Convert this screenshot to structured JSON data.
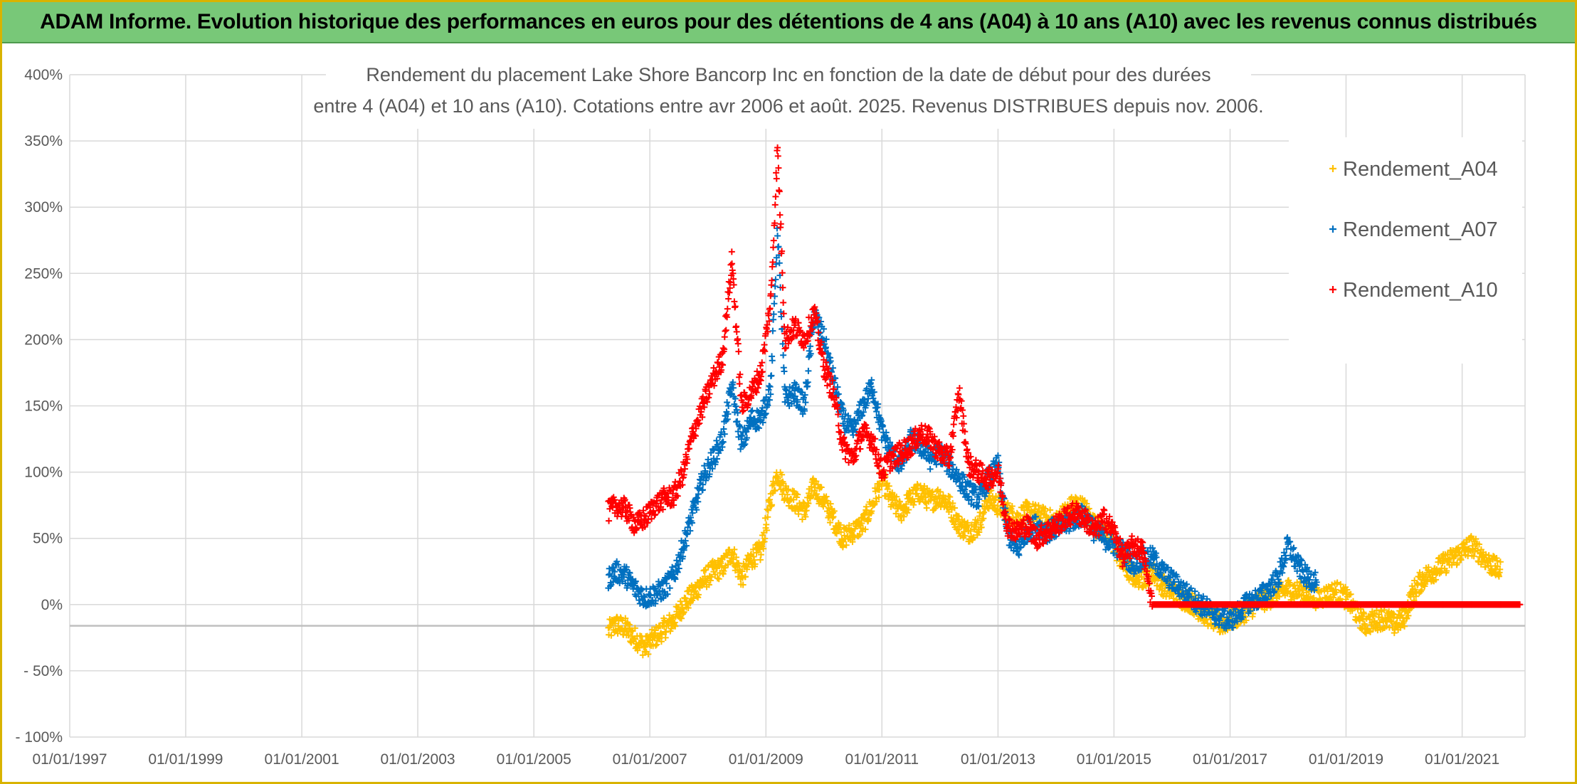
{
  "banner": {
    "title": "ADAM Informe. Evolution historique des performances en euros pour des détentions de 4 ans (A04) à 10 ans (A10) avec les revenus connus distribués"
  },
  "colors": {
    "banner_bg": "#78c878",
    "frame": "#d9b300",
    "grid": "#d9d9d9",
    "axis_line": "#bfbfbf",
    "text": "#595959",
    "A04": "#ffc000",
    "A07": "#0070c0",
    "A10": "#ff0000"
  },
  "chart_data": {
    "type": "scatter",
    "marker": "plus",
    "title_lines": [
      "Rendement du placement Lake Shore Bancorp Inc en fonction de la date de début pour des durées",
      "entre 4 (A04) et 10 ans (A10). Cotations entre avr 2006 et août. 2025. Revenus DISTRIBUES depuis nov. 2006."
    ],
    "xlabel": "",
    "ylabel": "",
    "x_type": "date",
    "xlim": [
      "1997-01-01",
      "2022-02-01"
    ],
    "x_tick_labels": [
      "01/01/1997",
      "01/01/1999",
      "01/01/2001",
      "01/01/2003",
      "01/01/2005",
      "01/01/2007",
      "01/01/2009",
      "01/01/2011",
      "01/01/2013",
      "01/01/2015",
      "01/01/2017",
      "01/01/2019",
      "01/01/2021"
    ],
    "x_tick_values": [
      "1997-01-01",
      "1999-01-01",
      "2001-01-01",
      "2003-01-01",
      "2005-01-01",
      "2007-01-01",
      "2009-01-01",
      "2011-01-01",
      "2013-01-01",
      "2015-01-01",
      "2017-01-01",
      "2019-01-01",
      "2021-01-01"
    ],
    "ylim": [
      -100,
      400
    ],
    "y_tick_labels": [
      "400%",
      "350%",
      "300%",
      "250%",
      "200%",
      "150%",
      "100%",
      "50%",
      "0%",
      "- 50%",
      "- 100%"
    ],
    "y_tick_values": [
      400,
      350,
      300,
      250,
      200,
      150,
      100,
      50,
      0,
      -50,
      -100
    ],
    "y_unit": "%",
    "grid": true,
    "horizontal_reference_line": -16,
    "legend_position": "top-right",
    "legend_entries": [
      "Rendement_A04",
      "Rendement_A07",
      "Rendement_A10"
    ],
    "series": [
      {
        "name": "Rendement_A04",
        "color": "#ffc000",
        "points": [
          [
            "2006-04-15",
            -20
          ],
          [
            "2006-06-01",
            -15
          ],
          [
            "2006-08-01",
            -18
          ],
          [
            "2006-10-01",
            -25
          ],
          [
            "2006-12-01",
            -32
          ],
          [
            "2007-02-01",
            -25
          ],
          [
            "2007-04-01",
            -18
          ],
          [
            "2007-06-01",
            -12
          ],
          [
            "2007-08-01",
            0
          ],
          [
            "2007-10-01",
            8
          ],
          [
            "2007-12-01",
            18
          ],
          [
            "2008-02-01",
            25
          ],
          [
            "2008-04-01",
            28
          ],
          [
            "2008-06-01",
            40
          ],
          [
            "2008-08-01",
            20
          ],
          [
            "2008-10-01",
            35
          ],
          [
            "2008-12-01",
            40
          ],
          [
            "2009-02-01",
            80
          ],
          [
            "2009-03-15",
            100
          ],
          [
            "2009-05-01",
            85
          ],
          [
            "2009-07-01",
            78
          ],
          [
            "2009-09-01",
            70
          ],
          [
            "2009-11-01",
            90
          ],
          [
            "2010-01-01",
            78
          ],
          [
            "2010-03-01",
            65
          ],
          [
            "2010-05-01",
            50
          ],
          [
            "2010-07-01",
            55
          ],
          [
            "2010-09-01",
            60
          ],
          [
            "2010-11-01",
            75
          ],
          [
            "2011-01-01",
            95
          ],
          [
            "2011-03-01",
            78
          ],
          [
            "2011-05-01",
            70
          ],
          [
            "2011-07-01",
            80
          ],
          [
            "2011-09-01",
            85
          ],
          [
            "2011-11-01",
            78
          ],
          [
            "2012-01-01",
            82
          ],
          [
            "2012-03-01",
            75
          ],
          [
            "2012-05-01",
            60
          ],
          [
            "2012-07-01",
            55
          ],
          [
            "2012-09-01",
            60
          ],
          [
            "2012-11-01",
            80
          ],
          [
            "2013-01-01",
            75
          ],
          [
            "2013-03-01",
            70
          ],
          [
            "2013-05-01",
            65
          ],
          [
            "2013-07-01",
            70
          ],
          [
            "2013-09-01",
            68
          ],
          [
            "2013-11-01",
            65
          ],
          [
            "2014-01-01",
            62
          ],
          [
            "2014-03-01",
            70
          ],
          [
            "2014-05-01",
            76
          ],
          [
            "2014-07-01",
            72
          ],
          [
            "2014-09-01",
            60
          ],
          [
            "2014-11-01",
            55
          ],
          [
            "2015-01-01",
            45
          ],
          [
            "2015-03-01",
            30
          ],
          [
            "2015-05-01",
            22
          ],
          [
            "2015-07-01",
            20
          ],
          [
            "2015-09-01",
            25
          ],
          [
            "2015-11-01",
            15
          ],
          [
            "2016-01-01",
            10
          ],
          [
            "2016-03-01",
            5
          ],
          [
            "2016-05-01",
            2
          ],
          [
            "2016-07-01",
            -5
          ],
          [
            "2016-09-01",
            -10
          ],
          [
            "2016-11-01",
            -15
          ],
          [
            "2017-01-01",
            -12
          ],
          [
            "2017-03-01",
            -8
          ],
          [
            "2017-05-01",
            -3
          ],
          [
            "2017-07-01",
            2
          ],
          [
            "2017-09-01",
            5
          ],
          [
            "2017-11-01",
            8
          ],
          [
            "2018-01-01",
            12
          ],
          [
            "2018-03-01",
            10
          ],
          [
            "2018-05-01",
            8
          ],
          [
            "2018-07-01",
            5
          ],
          [
            "2018-09-01",
            7
          ],
          [
            "2018-11-01",
            10
          ],
          [
            "2019-01-01",
            5
          ],
          [
            "2019-03-01",
            -5
          ],
          [
            "2019-05-01",
            -15
          ],
          [
            "2019-07-01",
            -12
          ],
          [
            "2019-09-01",
            -10
          ],
          [
            "2019-11-01",
            -15
          ],
          [
            "2020-01-01",
            -10
          ],
          [
            "2020-03-01",
            10
          ],
          [
            "2020-05-01",
            20
          ],
          [
            "2020-07-01",
            25
          ],
          [
            "2020-09-01",
            30
          ],
          [
            "2020-11-01",
            35
          ],
          [
            "2021-01-01",
            40
          ],
          [
            "2021-03-01",
            45
          ],
          [
            "2021-05-01",
            38
          ],
          [
            "2021-07-01",
            30
          ],
          [
            "2021-09-01",
            25
          ]
        ]
      },
      {
        "name": "Rendement_A07",
        "color": "#0070c0",
        "points": [
          [
            "2006-04-15",
            20
          ],
          [
            "2006-06-01",
            25
          ],
          [
            "2006-08-01",
            22
          ],
          [
            "2006-10-01",
            12
          ],
          [
            "2006-12-01",
            5
          ],
          [
            "2007-02-01",
            8
          ],
          [
            "2007-04-01",
            12
          ],
          [
            "2007-06-01",
            22
          ],
          [
            "2007-08-01",
            45
          ],
          [
            "2007-10-01",
            70
          ],
          [
            "2007-12-01",
            95
          ],
          [
            "2008-02-01",
            110
          ],
          [
            "2008-04-01",
            125
          ],
          [
            "2008-06-01",
            165
          ],
          [
            "2008-08-01",
            120
          ],
          [
            "2008-10-01",
            140
          ],
          [
            "2008-12-01",
            140
          ],
          [
            "2009-02-01",
            165
          ],
          [
            "2009-03-15",
            285
          ],
          [
            "2009-05-01",
            155
          ],
          [
            "2009-07-01",
            160
          ],
          [
            "2009-09-01",
            150
          ],
          [
            "2009-11-01",
            220
          ],
          [
            "2010-01-01",
            200
          ],
          [
            "2010-03-01",
            170
          ],
          [
            "2010-05-01",
            140
          ],
          [
            "2010-07-01",
            130
          ],
          [
            "2010-09-01",
            150
          ],
          [
            "2010-11-01",
            165
          ],
          [
            "2011-01-01",
            130
          ],
          [
            "2011-03-01",
            115
          ],
          [
            "2011-05-01",
            105
          ],
          [
            "2011-07-01",
            125
          ],
          [
            "2011-09-01",
            120
          ],
          [
            "2011-11-01",
            110
          ],
          [
            "2012-01-01",
            115
          ],
          [
            "2012-03-01",
            105
          ],
          [
            "2012-05-01",
            95
          ],
          [
            "2012-07-01",
            85
          ],
          [
            "2012-09-01",
            80
          ],
          [
            "2012-11-01",
            95
          ],
          [
            "2013-01-01",
            105
          ],
          [
            "2013-03-01",
            55
          ],
          [
            "2013-05-01",
            40
          ],
          [
            "2013-07-01",
            55
          ],
          [
            "2013-09-01",
            60
          ],
          [
            "2013-11-01",
            55
          ],
          [
            "2014-01-01",
            58
          ],
          [
            "2014-03-01",
            60
          ],
          [
            "2014-05-01",
            65
          ],
          [
            "2014-07-01",
            68
          ],
          [
            "2014-09-01",
            55
          ],
          [
            "2014-11-01",
            50
          ],
          [
            "2015-01-01",
            45
          ],
          [
            "2015-03-01",
            40
          ],
          [
            "2015-05-01",
            30
          ],
          [
            "2015-07-01",
            35
          ],
          [
            "2015-09-01",
            35
          ],
          [
            "2015-11-01",
            25
          ],
          [
            "2016-01-01",
            18
          ],
          [
            "2016-03-01",
            12
          ],
          [
            "2016-05-01",
            5
          ],
          [
            "2016-07-01",
            0
          ],
          [
            "2016-09-01",
            -5
          ],
          [
            "2016-11-01",
            -10
          ],
          [
            "2017-01-01",
            -12
          ],
          [
            "2017-03-01",
            -5
          ],
          [
            "2017-05-01",
            2
          ],
          [
            "2017-07-01",
            5
          ],
          [
            "2017-09-01",
            12
          ],
          [
            "2017-11-01",
            20
          ],
          [
            "2018-01-01",
            45
          ],
          [
            "2018-03-01",
            30
          ],
          [
            "2018-05-01",
            20
          ],
          [
            "2018-07-01",
            18
          ]
        ]
      },
      {
        "name": "Rendement_A10",
        "color": "#ff0000",
        "points": [
          [
            "2006-04-15",
            70
          ],
          [
            "2006-06-01",
            75
          ],
          [
            "2006-08-01",
            72
          ],
          [
            "2006-10-01",
            60
          ],
          [
            "2006-12-01",
            65
          ],
          [
            "2007-02-01",
            75
          ],
          [
            "2007-04-01",
            80
          ],
          [
            "2007-06-01",
            82
          ],
          [
            "2007-08-01",
            100
          ],
          [
            "2007-10-01",
            130
          ],
          [
            "2007-12-01",
            150
          ],
          [
            "2008-02-01",
            170
          ],
          [
            "2008-04-01",
            185
          ],
          [
            "2008-06-01",
            260
          ],
          [
            "2008-08-01",
            150
          ],
          [
            "2008-10-01",
            160
          ],
          [
            "2008-12-01",
            175
          ],
          [
            "2009-02-01",
            230
          ],
          [
            "2009-03-15",
            345
          ],
          [
            "2009-05-01",
            200
          ],
          [
            "2009-07-01",
            210
          ],
          [
            "2009-09-01",
            200
          ],
          [
            "2009-11-01",
            220
          ],
          [
            "2010-01-01",
            180
          ],
          [
            "2010-03-01",
            160
          ],
          [
            "2010-05-01",
            120
          ],
          [
            "2010-07-01",
            110
          ],
          [
            "2010-09-01",
            130
          ],
          [
            "2010-11-01",
            125
          ],
          [
            "2011-01-01",
            100
          ],
          [
            "2011-03-01",
            110
          ],
          [
            "2011-05-01",
            115
          ],
          [
            "2011-07-01",
            120
          ],
          [
            "2011-09-01",
            130
          ],
          [
            "2011-11-01",
            125
          ],
          [
            "2012-01-01",
            115
          ],
          [
            "2012-03-01",
            110
          ],
          [
            "2012-05-01",
            160
          ],
          [
            "2012-07-01",
            105
          ],
          [
            "2012-09-01",
            100
          ],
          [
            "2012-11-01",
            95
          ],
          [
            "2013-01-01",
            100
          ],
          [
            "2013-03-01",
            60
          ],
          [
            "2013-05-01",
            55
          ],
          [
            "2013-07-01",
            60
          ],
          [
            "2013-09-01",
            50
          ],
          [
            "2013-11-01",
            55
          ],
          [
            "2014-01-01",
            60
          ],
          [
            "2014-03-01",
            65
          ],
          [
            "2014-05-01",
            70
          ],
          [
            "2014-07-01",
            65
          ],
          [
            "2014-09-01",
            55
          ],
          [
            "2014-11-01",
            65
          ],
          [
            "2015-01-01",
            55
          ],
          [
            "2015-03-01",
            35
          ],
          [
            "2015-05-01",
            45
          ],
          [
            "2015-07-01",
            40
          ],
          [
            "2015-09-01",
            0
          ],
          [
            "2016-03-01",
            0
          ],
          [
            "2016-09-01",
            0
          ],
          [
            "2017-03-01",
            0
          ],
          [
            "2017-09-01",
            0
          ],
          [
            "2018-03-01",
            0
          ],
          [
            "2018-09-01",
            0
          ],
          [
            "2019-03-01",
            0
          ],
          [
            "2019-09-01",
            0
          ],
          [
            "2020-03-01",
            0
          ],
          [
            "2020-09-01",
            0
          ],
          [
            "2021-03-01",
            0
          ],
          [
            "2021-09-01",
            0
          ],
          [
            "2022-01-01",
            0
          ]
        ]
      }
    ]
  }
}
